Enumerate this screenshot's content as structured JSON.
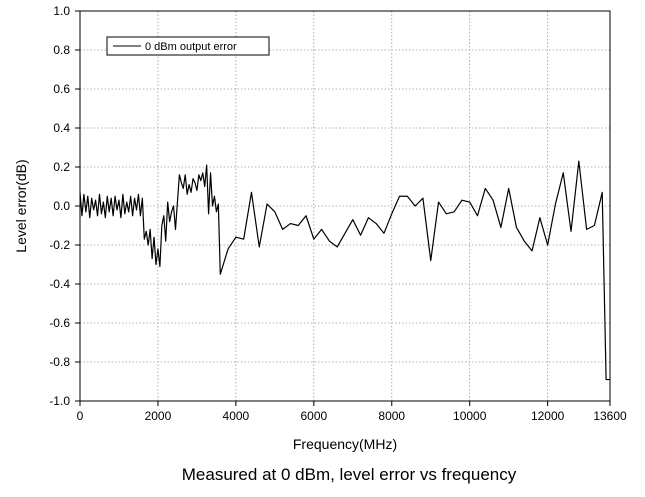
{
  "chart_data": {
    "type": "line",
    "title": "",
    "caption": "Measured at 0 dBm, level error vs frequency",
    "xlabel": "Frequency(MHz)",
    "ylabel": "Level error(dB)",
    "xlim": [
      0,
      13600
    ],
    "ylim": [
      -1.0,
      1.0
    ],
    "xticks": [
      0,
      2000,
      4000,
      6000,
      8000,
      10000,
      12000,
      13600
    ],
    "xtick_labels": [
      "0",
      "2000",
      "4000",
      "6000",
      "8000",
      "10000",
      "12000",
      "13600"
    ],
    "yticks": [
      -1.0,
      -0.8,
      -0.6,
      -0.4,
      -0.2,
      0.0,
      0.2,
      0.4,
      0.6,
      0.8,
      1.0
    ],
    "ytick_labels": [
      "-1.0",
      "-0.8",
      "-0.6",
      "-0.4",
      "-0.2",
      "0.0",
      "0.2",
      "0.4",
      "0.6",
      "0.8",
      "1.0"
    ],
    "grid": true,
    "legend_position": "top-left",
    "series": [
      {
        "name": "0 dBm output error",
        "color": "#000000",
        "x": [
          0,
          50,
          100,
          150,
          200,
          250,
          300,
          350,
          400,
          450,
          500,
          550,
          600,
          650,
          700,
          750,
          800,
          850,
          900,
          950,
          1000,
          1050,
          1100,
          1150,
          1200,
          1250,
          1300,
          1350,
          1400,
          1450,
          1500,
          1550,
          1600,
          1650,
          1700,
          1750,
          1800,
          1850,
          1900,
          1950,
          2000,
          2050,
          2100,
          2150,
          2200,
          2250,
          2300,
          2350,
          2400,
          2450,
          2500,
          2550,
          2600,
          2650,
          2700,
          2750,
          2800,
          2850,
          2900,
          2950,
          3000,
          3050,
          3100,
          3150,
          3200,
          3250,
          3300,
          3350,
          3400,
          3450,
          3500,
          3550,
          3600,
          3800,
          4000,
          4200,
          4400,
          4600,
          4800,
          5000,
          5200,
          5400,
          5600,
          5800,
          6000,
          6200,
          6400,
          6600,
          6800,
          7000,
          7200,
          7400,
          7600,
          7800,
          8000,
          8200,
          8400,
          8600,
          8800,
          9000,
          9200,
          9400,
          9600,
          9800,
          10000,
          10200,
          10400,
          10600,
          10800,
          11000,
          11200,
          11400,
          11600,
          11800,
          12000,
          12200,
          12400,
          12600,
          12800,
          13000,
          13200,
          13400,
          13500,
          13600
        ],
        "y": [
          0.07,
          -0.05,
          0.06,
          -0.03,
          0.05,
          -0.06,
          0.04,
          -0.02,
          0.03,
          -0.05,
          0.06,
          -0.04,
          0.02,
          -0.06,
          0.05,
          -0.03,
          0.04,
          -0.05,
          0.05,
          -0.02,
          0.03,
          -0.06,
          0.06,
          -0.04,
          0.02,
          -0.03,
          0.05,
          -0.05,
          0.04,
          -0.02,
          0.06,
          -0.05,
          0.04,
          -0.17,
          -0.13,
          -0.2,
          -0.12,
          -0.27,
          -0.16,
          -0.3,
          -0.22,
          -0.31,
          -0.1,
          -0.05,
          -0.18,
          0.02,
          -0.08,
          -0.03,
          0.0,
          -0.12,
          0.02,
          0.16,
          0.12,
          0.09,
          0.16,
          0.06,
          0.11,
          0.07,
          0.14,
          0.12,
          0.08,
          0.16,
          0.13,
          0.17,
          0.1,
          0.21,
          -0.04,
          0.17,
          0.0,
          0.05,
          -0.03,
          0.01,
          -0.35,
          -0.22,
          -0.16,
          -0.17,
          0.07,
          -0.21,
          0.01,
          -0.03,
          -0.12,
          -0.09,
          -0.1,
          -0.05,
          -0.17,
          -0.12,
          -0.18,
          -0.21,
          -0.14,
          -0.07,
          -0.15,
          -0.06,
          -0.09,
          -0.14,
          -0.04,
          0.05,
          0.05,
          0.0,
          0.04,
          -0.28,
          0.02,
          -0.04,
          -0.03,
          0.03,
          0.02,
          -0.05,
          0.09,
          0.03,
          -0.11,
          0.09,
          -0.11,
          -0.18,
          -0.23,
          -0.06,
          -0.2,
          0.01,
          0.17,
          -0.13,
          0.23,
          -0.12,
          -0.1,
          0.07,
          -0.89,
          -0.89
        ]
      }
    ]
  }
}
